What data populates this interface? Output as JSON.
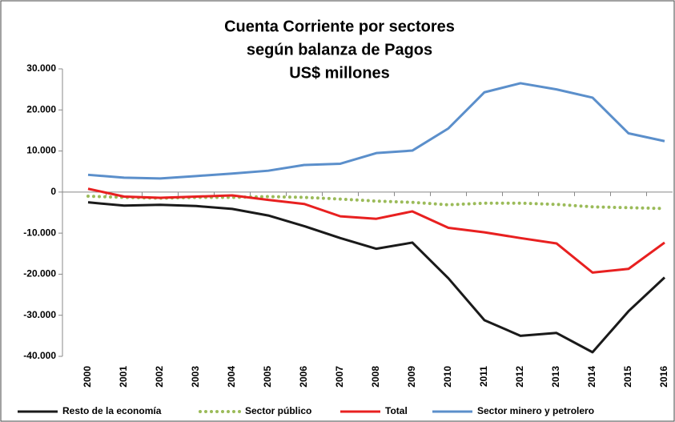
{
  "chart_data": {
    "type": "line",
    "title": [
      "Cuenta Corriente por sectores",
      "según balanza de Pagos",
      "US$ millones"
    ],
    "categories": [
      "2000",
      "2001",
      "2002",
      "2003",
      "2004",
      "2005",
      "2006",
      "2007",
      "2008",
      "2009",
      "2010",
      "2011",
      "2012",
      "2013",
      "2014",
      "2015",
      "2016"
    ],
    "series": [
      {
        "name": "Resto de la economía",
        "color": "#1a1a1a",
        "style": "solid",
        "values": [
          -2500,
          -3300,
          -3100,
          -3400,
          -4100,
          -5700,
          -8300,
          -11200,
          -13800,
          -12300,
          -21000,
          -31200,
          -35000,
          -34300,
          -39000,
          -29000,
          -20800
        ]
      },
      {
        "name": "Sector público",
        "color": "#9bbb59",
        "style": "dotted",
        "values": [
          -1000,
          -1300,
          -1500,
          -1300,
          -1300,
          -1100,
          -1300,
          -1700,
          -2200,
          -2500,
          -3100,
          -2700,
          -2700,
          -3000,
          -3600,
          -3800,
          -4000
        ]
      },
      {
        "name": "Total",
        "color": "#e82020",
        "style": "solid",
        "values": [
          800,
          -1100,
          -1400,
          -1100,
          -800,
          -1900,
          -2900,
          -5900,
          -6500,
          -4700,
          -8700,
          -9800,
          -11200,
          -12500,
          -19600,
          -18700,
          -12300
        ]
      },
      {
        "name": "Sector minero y petrolero",
        "color": "#5b8fcb",
        "style": "solid",
        "values": [
          4200,
          3500,
          3300,
          3900,
          4500,
          5200,
          6600,
          6900,
          9500,
          10100,
          15500,
          24300,
          26500,
          25000,
          23000,
          14300,
          12400
        ]
      }
    ],
    "ylim": [
      -40000,
      30000
    ],
    "yticks": [
      {
        "value": -40000,
        "label": "-40.000"
      },
      {
        "value": -30000,
        "label": "-30.000"
      },
      {
        "value": -20000,
        "label": "-20.000"
      },
      {
        "value": -10000,
        "label": "-10.000"
      },
      0,
      {
        "value": 10000,
        "label": "10.000"
      },
      {
        "value": 20000,
        "label": "20.000"
      },
      {
        "value": 30000,
        "label": "30.000"
      }
    ],
    "grid": false,
    "legend": "bottom"
  }
}
